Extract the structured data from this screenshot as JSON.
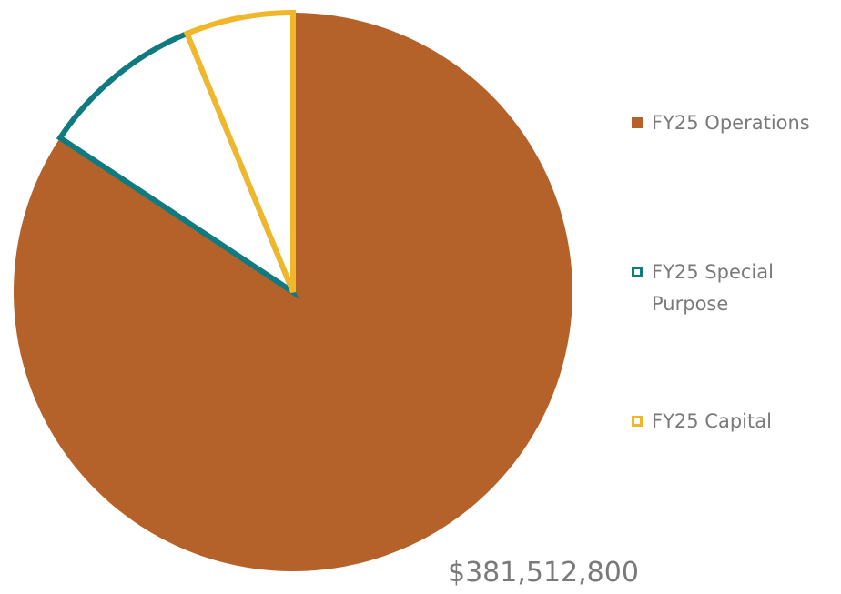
{
  "chart_data": {
    "type": "pie",
    "categories": [
      "FY25 Operations",
      "FY25 Special Purpose",
      "FY25 Capital"
    ],
    "values": [
      381512800,
      43000000,
      28000000
    ],
    "value_labels": [
      "$381,512,800",
      null,
      null
    ],
    "colors": [
      "#b5622a",
      "#0f7a80",
      "#f0b72a"
    ],
    "fills": [
      "#b5622a",
      "#ffffff",
      "#ffffff"
    ],
    "legend": "right"
  }
}
